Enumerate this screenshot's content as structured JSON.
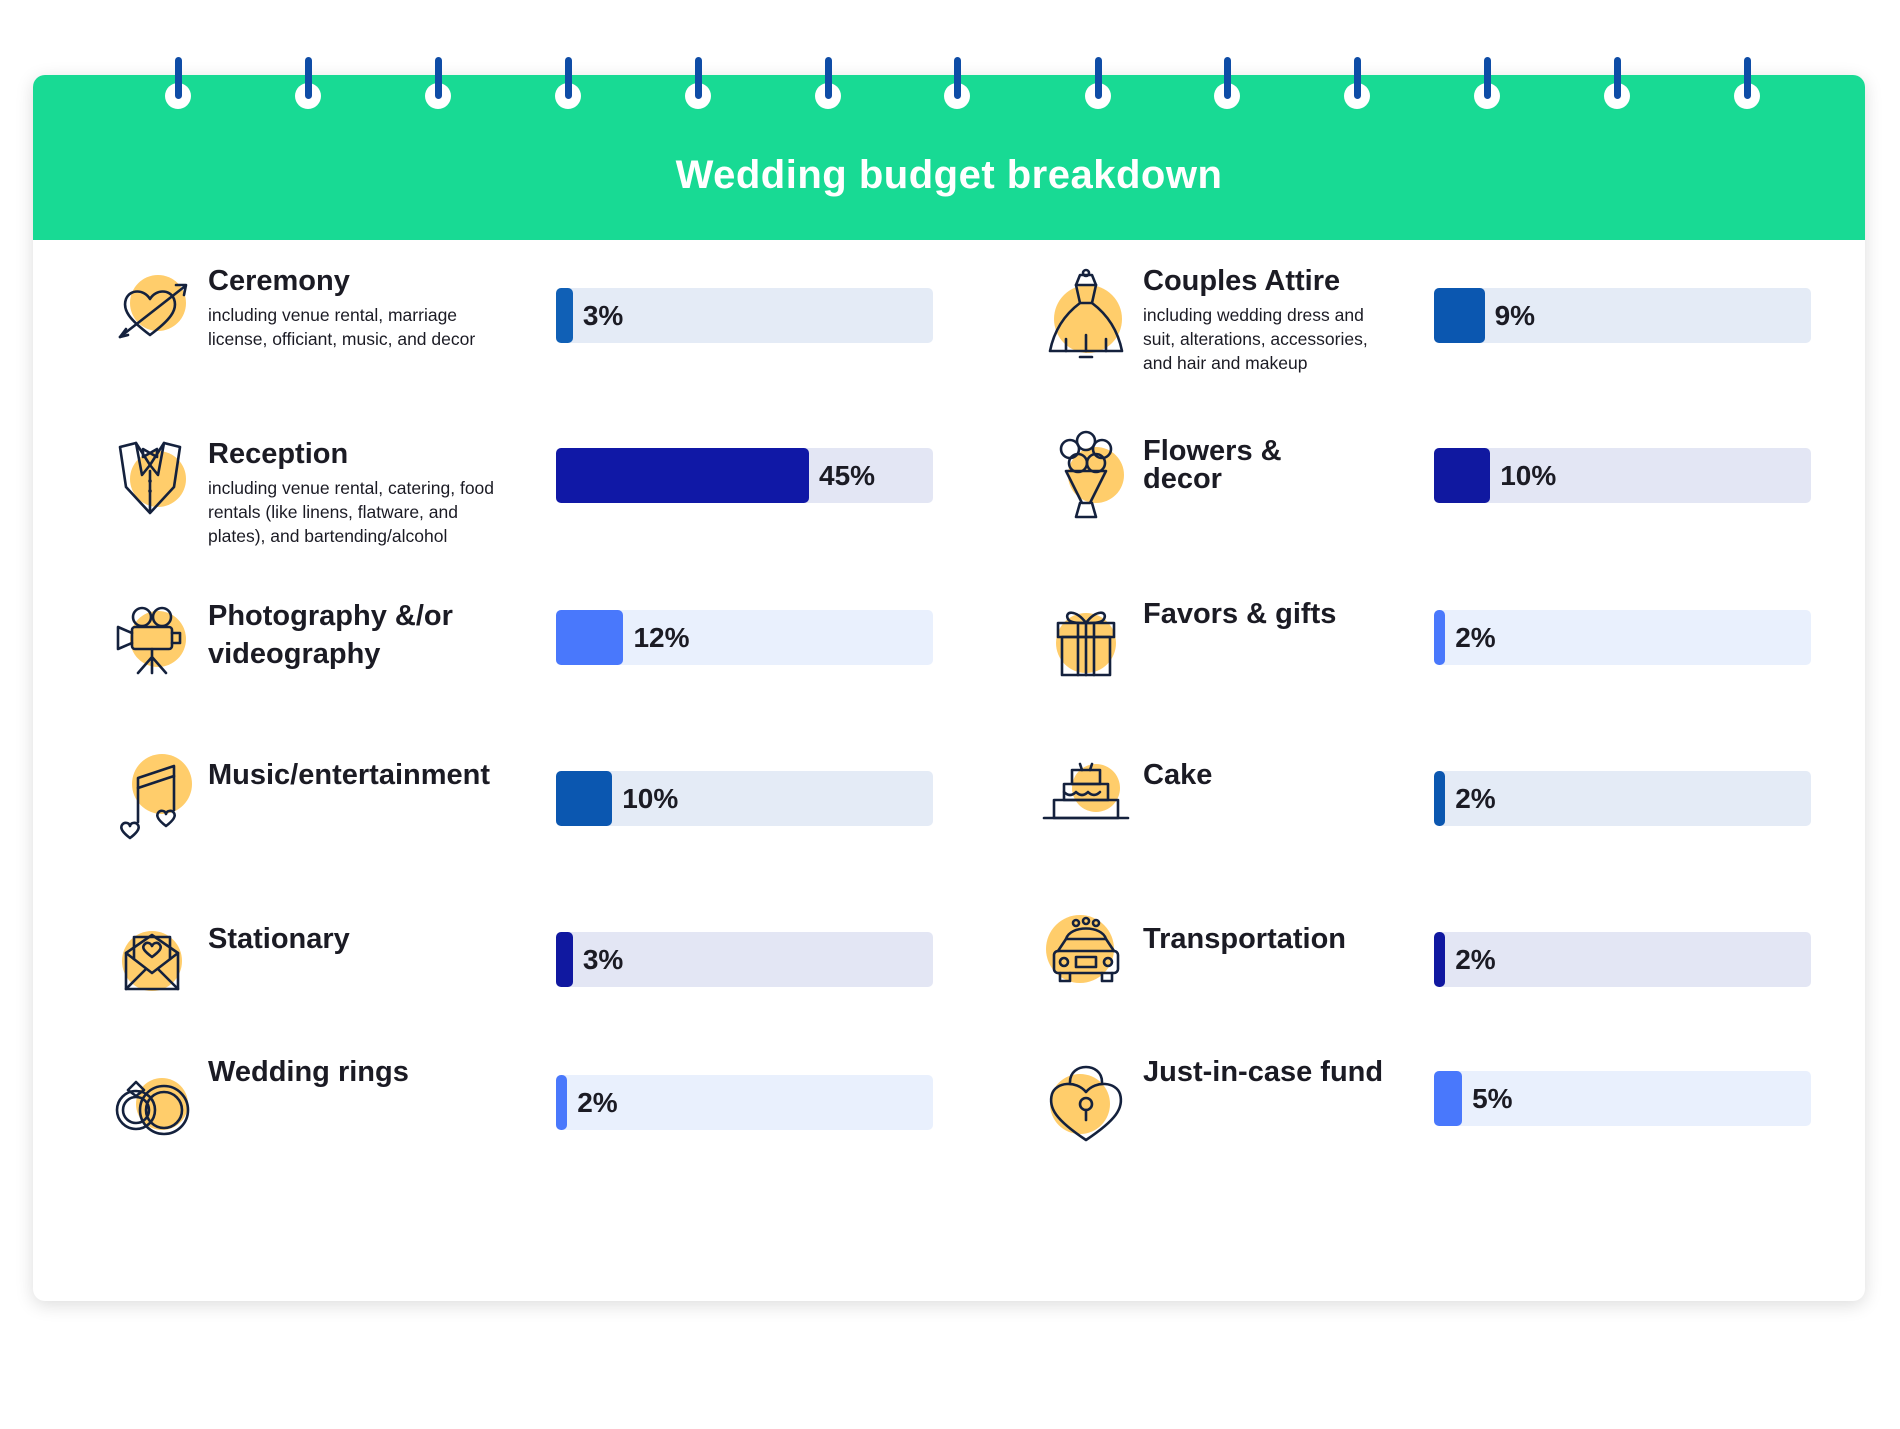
{
  "page": {
    "title": "Wedding budget breakdown",
    "colors": {
      "header": "#18DA94",
      "ring_wire": "#0E4CA6",
      "icon_circle": "#FFCD6B",
      "icon_line": "#14213d"
    }
  },
  "chart_data": {
    "type": "bar",
    "title": "Wedding budget breakdown",
    "unit": "%",
    "xlim": [
      0,
      100
    ],
    "categories": [
      {
        "name": "Ceremony",
        "description": "including venue rental, marriage license, officiant, music, and decor",
        "value": 3,
        "label": "3%",
        "icon": "heart-arrow-icon",
        "fill": "#1060B6",
        "track": "#E4EBF6"
      },
      {
        "name": "Reception",
        "description": "including venue rental, catering, food rentals (like linens, flatware, and plates), and bartending/alcohol",
        "value": 45,
        "label": "45%",
        "icon": "tuxedo-icon",
        "fill": "#1018A6",
        "track": "#E3E6F4"
      },
      {
        "name": "Photography &/or videography",
        "description": "",
        "value": 12,
        "label": "12%",
        "icon": "video-camera-icon",
        "fill": "#4978FC",
        "track": "#E9F0FD"
      },
      {
        "name": "Music/entertainment",
        "description": "",
        "value": 10,
        "label": "10%",
        "icon": "music-note-icon",
        "fill": "#0B57B0",
        "track": "#E4EBF6"
      },
      {
        "name": "Stationary",
        "description": "",
        "value": 3,
        "label": "3%",
        "icon": "envelope-heart-icon",
        "fill": "#1018A0",
        "track": "#E3E6F4"
      },
      {
        "name": "Wedding rings",
        "description": "",
        "value": 2,
        "label": "2%",
        "icon": "wedding-rings-icon",
        "fill": "#4978FC",
        "track": "#E9F0FD"
      },
      {
        "name": "Couples Attire",
        "description": "including wedding dress and suit, alterations, accessories, and hair and makeup",
        "value": 9,
        "label": "9%",
        "icon": "wedding-dress-icon",
        "fill": "#0B57B0",
        "track": "#E4EBF6"
      },
      {
        "name": "Flowers & decor",
        "description": "",
        "value": 10,
        "label": "10%",
        "icon": "bouquet-icon",
        "fill": "#1018A0",
        "track": "#E3E6F4"
      },
      {
        "name": "Favors & gifts",
        "description": "",
        "value": 2,
        "label": "2%",
        "icon": "gift-box-icon",
        "fill": "#4978FC",
        "track": "#E9F0FD"
      },
      {
        "name": "Cake",
        "description": "",
        "value": 2,
        "label": "2%",
        "icon": "cake-icon",
        "fill": "#0B57B0",
        "track": "#E4EBF6"
      },
      {
        "name": "Transportation",
        "description": "",
        "value": 2,
        "label": "2%",
        "icon": "wedding-car-icon",
        "fill": "#1018A0",
        "track": "#E3E6F4"
      },
      {
        "name": "Just-in-case fund",
        "description": "",
        "value": 5,
        "label": "5%",
        "icon": "heart-padlock-icon",
        "fill": "#4978FC",
        "track": "#E9F0FD"
      }
    ]
  }
}
